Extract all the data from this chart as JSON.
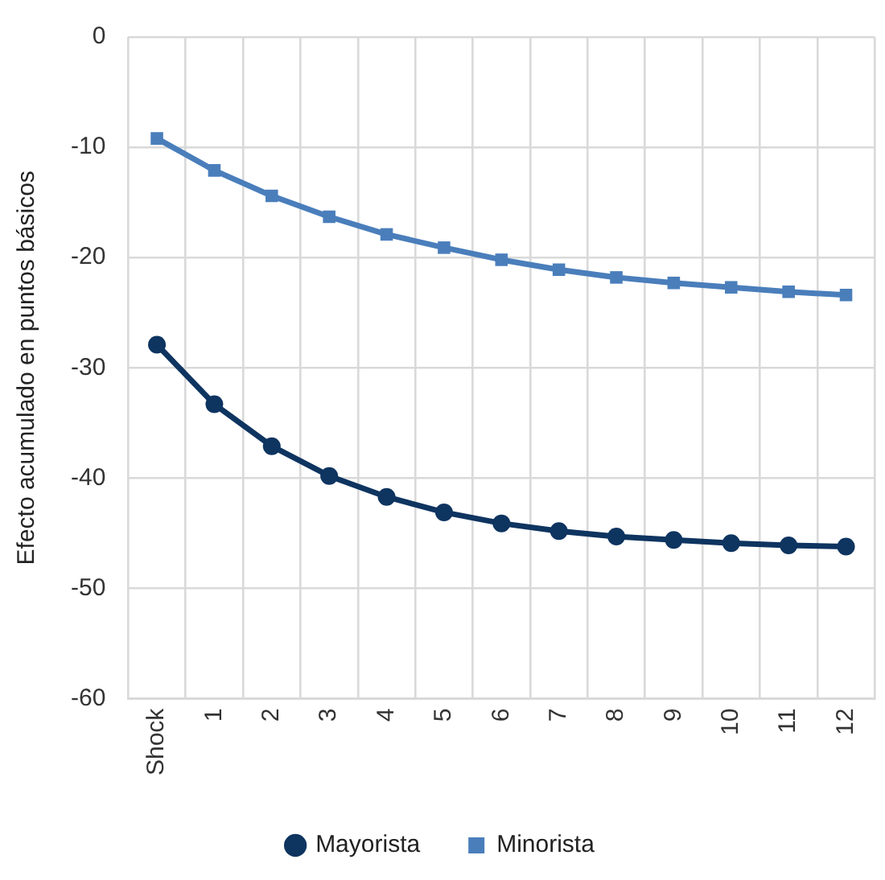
{
  "chart_data": {
    "type": "line",
    "ylabel": "Efecto acumulado en puntos básicos",
    "categories": [
      "Shock",
      "1",
      "2",
      "3",
      "4",
      "5",
      "6",
      "7",
      "8",
      "9",
      "10",
      "11",
      "12"
    ],
    "series": [
      {
        "name": "Mayorista",
        "color": "#0e3460",
        "marker": "circle",
        "values": [
          -27.9,
          -33.3,
          -37.1,
          -39.8,
          -41.7,
          -43.1,
          -44.1,
          -44.8,
          -45.3,
          -45.6,
          -45.9,
          -46.1,
          -46.2
        ]
      },
      {
        "name": "Minorista",
        "color": "#4a7ebb",
        "marker": "square",
        "values": [
          -9.2,
          -12.1,
          -14.4,
          -16.3,
          -17.9,
          -19.1,
          -20.2,
          -21.1,
          -21.8,
          -22.3,
          -22.7,
          -23.1,
          -23.4
        ]
      }
    ],
    "ylim": [
      -60,
      0
    ],
    "yticks": [
      -60,
      -50,
      -40,
      -30,
      -20,
      -10,
      0
    ],
    "grid": true,
    "legend": "bottom",
    "line_style": "solid"
  }
}
